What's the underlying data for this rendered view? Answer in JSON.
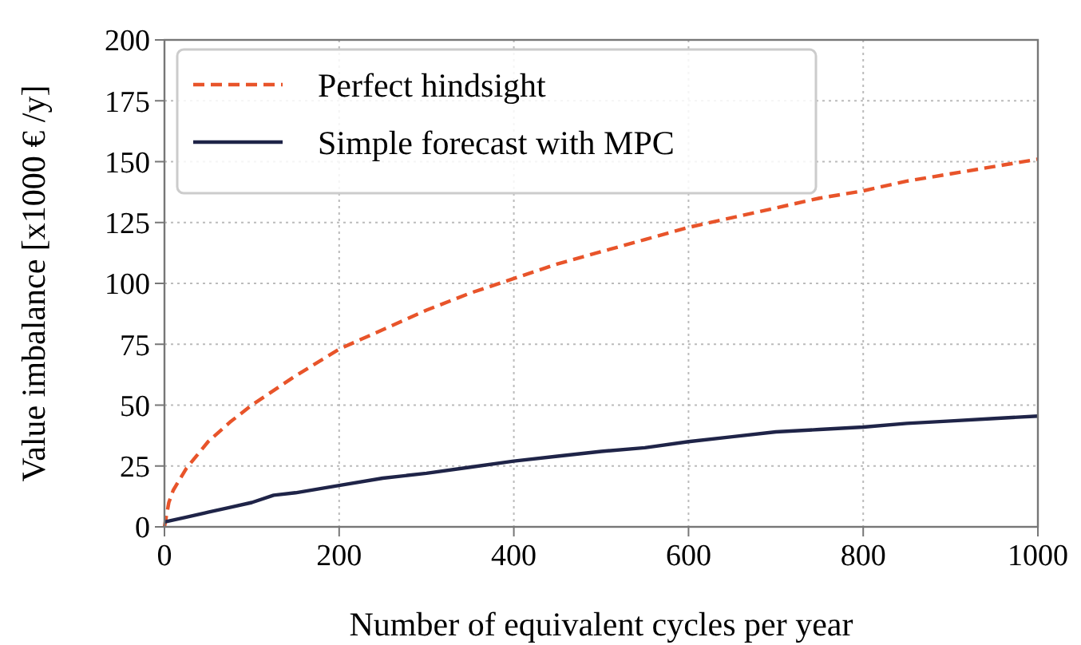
{
  "chart_data": {
    "type": "line",
    "xlabel": "Number of equivalent cycles per year",
    "ylabel": "Value imbalance [x1000 € /y]",
    "xlim": [
      0,
      1000
    ],
    "ylim": [
      0,
      200
    ],
    "xticks": [
      0,
      200,
      400,
      600,
      800,
      1000
    ],
    "yticks": [
      0,
      25,
      50,
      75,
      100,
      125,
      150,
      175,
      200
    ],
    "grid": true,
    "legend": "top left",
    "series": [
      {
        "name": "Perfect hindsight",
        "color": "#e8542a",
        "line_style": "dashed",
        "x": [
          0,
          5,
          10,
          25,
          50,
          75,
          100,
          150,
          200,
          250,
          300,
          350,
          400,
          450,
          500,
          550,
          600,
          650,
          700,
          750,
          800,
          850,
          900,
          950,
          1000
        ],
        "values": [
          0,
          10,
          15,
          24,
          35,
          43,
          50,
          62,
          73,
          81,
          89,
          96,
          102,
          108,
          113,
          118,
          123,
          127,
          131,
          135,
          138,
          142,
          145,
          148,
          151
        ]
      },
      {
        "name": "Simple forecast with MPC",
        "color": "#1f2448",
        "line_style": "solid",
        "x": [
          0,
          25,
          50,
          75,
          100,
          125,
          150,
          200,
          250,
          300,
          350,
          400,
          450,
          500,
          550,
          600,
          650,
          700,
          750,
          800,
          850,
          900,
          950,
          1000
        ],
        "values": [
          2,
          4,
          6,
          8,
          10,
          13,
          14,
          17,
          20,
          22,
          24.5,
          27,
          29,
          31,
          32.5,
          35,
          37,
          39,
          40,
          41,
          42.5,
          43.5,
          44.5,
          45.5
        ]
      }
    ]
  }
}
